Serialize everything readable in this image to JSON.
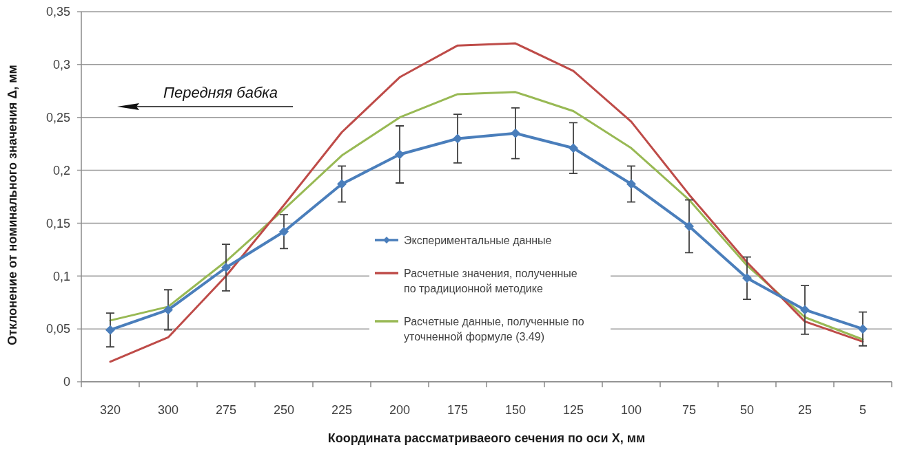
{
  "chart_data": {
    "type": "line",
    "xlabel": "Координата рассматриваеого сечения по оси Х, мм",
    "ylabel": "Отклонение от номинального значения Δ, мм",
    "annotations": [
      "Передняя бабка"
    ],
    "categories": [
      "320",
      "300",
      "275",
      "250",
      "225",
      "200",
      "175",
      "150",
      "125",
      "100",
      "75",
      "50",
      "25",
      "5"
    ],
    "series": [
      {
        "name": "Экспериментальные данные",
        "color": "#4a7ebb",
        "marker": "diamond",
        "values": [
          0.049,
          0.068,
          0.108,
          0.142,
          0.187,
          0.215,
          0.23,
          0.235,
          0.221,
          0.187,
          0.147,
          0.098,
          0.068,
          0.05
        ],
        "errors": [
          0.016,
          0.019,
          0.022,
          0.016,
          0.017,
          0.027,
          0.023,
          0.024,
          0.024,
          0.017,
          0.025,
          0.02,
          0.023,
          0.016
        ]
      },
      {
        "name": "Расчетные значения, полученные по традиционной методике",
        "color": "#be4b48",
        "values": [
          0.019,
          0.042,
          0.1,
          0.167,
          0.236,
          0.288,
          0.318,
          0.32,
          0.294,
          0.246,
          0.177,
          0.113,
          0.057,
          0.038
        ]
      },
      {
        "name": "Расчетные данные, полученные по уточненной формуле (3.49)",
        "color": "#98b954",
        "values": [
          0.058,
          0.071,
          0.114,
          0.163,
          0.214,
          0.25,
          0.272,
          0.274,
          0.256,
          0.221,
          0.172,
          0.11,
          0.061,
          0.04
        ]
      }
    ],
    "ylim": [
      0,
      0.35
    ],
    "yticks": [
      0,
      {
        "value": 0.05,
        "label": "0,05"
      },
      {
        "value": 0.1,
        "label": "0,1"
      },
      {
        "value": 0.15,
        "label": "0,15"
      },
      {
        "value": 0.2,
        "label": "0,2"
      },
      {
        "value": 0.25,
        "label": "0,25"
      },
      {
        "value": 0.3,
        "label": "0,3"
      },
      {
        "value": 0.35,
        "label": "0,35"
      }
    ],
    "grid": "y",
    "legend": "bottom"
  }
}
